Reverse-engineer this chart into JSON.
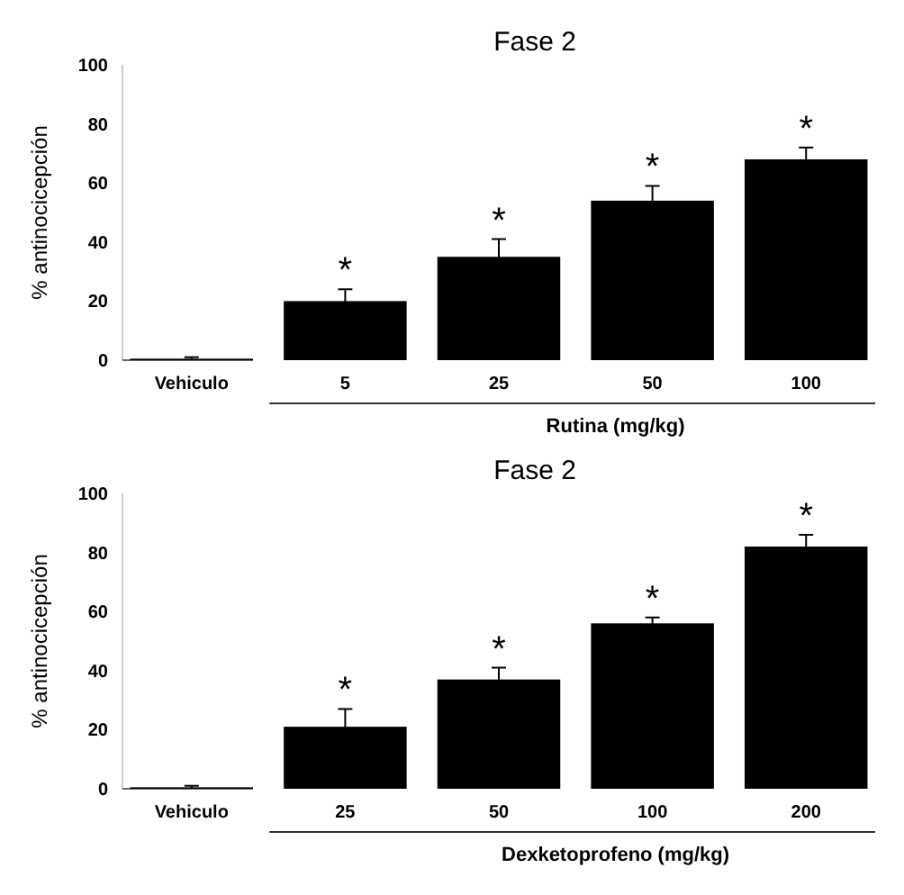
{
  "chart_data": [
    {
      "type": "bar",
      "title": "Fase 2",
      "ylabel": "% antinocicepción",
      "xlabel": "Rutina (mg/kg)",
      "categories": [
        "Vehiculo",
        "5",
        "25",
        "50",
        "100"
      ],
      "values": [
        0.5,
        20,
        35,
        54,
        68
      ],
      "errors": [
        0.5,
        4,
        6,
        5,
        4
      ],
      "color": "#000000",
      "ylim": [
        0,
        100
      ],
      "yticks": [
        0,
        20,
        40,
        60,
        80,
        100
      ],
      "annotations": [
        {
          "text": "*",
          "x": "5",
          "y": 20
        },
        {
          "text": "*",
          "x": "25",
          "y": 35
        },
        {
          "text": "*",
          "x": "50",
          "y": 54
        },
        {
          "text": "*",
          "x": "100",
          "y": 68
        }
      ]
    },
    {
      "type": "bar",
      "title": "Fase 2",
      "ylabel": "% antinocicepción",
      "xlabel": "Dexketoprofeno (mg/kg)",
      "categories": [
        "Vehiculo",
        "25",
        "50",
        "100",
        "200"
      ],
      "values": [
        0.5,
        21,
        37,
        56,
        82
      ],
      "errors": [
        0.5,
        6,
        4,
        2,
        4
      ],
      "color": "#000000",
      "ylim": [
        0,
        100
      ],
      "yticks": [
        0,
        20,
        40,
        60,
        80,
        100
      ],
      "annotations": [
        {
          "text": "*",
          "x": "25",
          "y": 21
        },
        {
          "text": "*",
          "x": "50",
          "y": 37
        },
        {
          "text": "*",
          "x": "100",
          "y": 56
        },
        {
          "text": "*",
          "x": "200",
          "y": 82
        }
      ]
    }
  ]
}
